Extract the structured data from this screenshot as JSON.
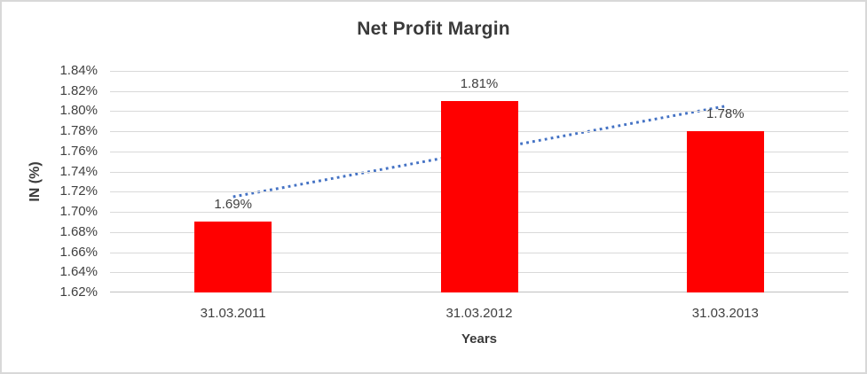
{
  "window": {
    "background": "#ffffff",
    "frame_border_color": "#d8d8d8"
  },
  "chart_data": {
    "type": "bar",
    "title": "Net Profit Margin",
    "xlabel": "Years",
    "ylabel": "IN (%)",
    "categories": [
      "31.03.2011",
      "31.03.2012",
      "31.03.2013"
    ],
    "values": [
      1.69,
      1.81,
      1.78
    ],
    "data_labels": [
      "1.69%",
      "1.81%",
      "1.78%"
    ],
    "ylim": [
      1.62,
      1.84
    ],
    "ytick_step": 0.02,
    "ytick_labels_top_to_bottom": [
      "1.84%",
      "1.82%",
      "1.80%",
      "1.78%",
      "1.76%",
      "1.74%",
      "1.72%",
      "1.70%",
      "1.68%",
      "1.66%",
      "1.64%",
      "1.62%"
    ],
    "grid": true,
    "legend": "none",
    "bar_color": "#ff0000",
    "gridline_color": "#d9d9d9",
    "axis_line_color": "#bfbfbf",
    "text_color": "#404040",
    "title_color": "#3a3a3a",
    "trendline": {
      "type": "linear",
      "line_style": "dotted",
      "color": "#4472c4",
      "start_value": 1.715,
      "end_value": 1.805
    }
  }
}
